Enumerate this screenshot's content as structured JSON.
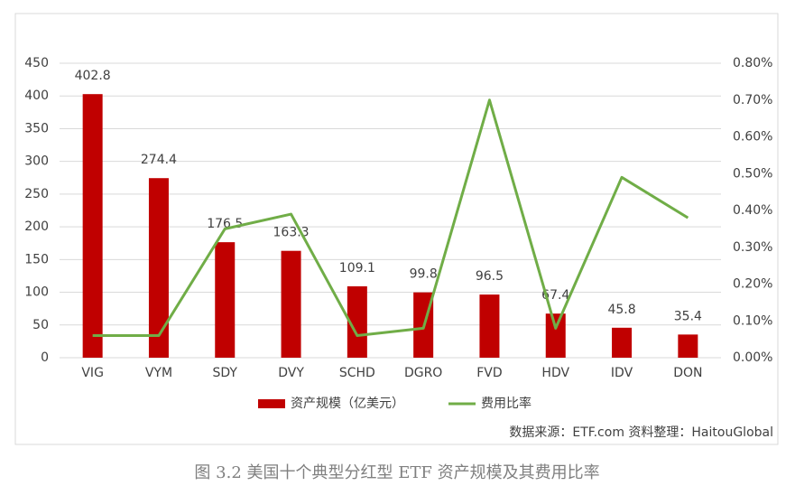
{
  "chart_data": {
    "type": "bar",
    "categories": [
      "VIG",
      "VYM",
      "SDY",
      "DVY",
      "SCHD",
      "DGRO",
      "FVD",
      "HDV",
      "IDV",
      "DON"
    ],
    "series": [
      {
        "name": "资产规模（亿美元）",
        "type": "bar",
        "color": "#c00000",
        "values": [
          402.8,
          274.4,
          176.5,
          163.3,
          109.1,
          99.8,
          96.5,
          67.4,
          45.8,
          35.4
        ]
      },
      {
        "name": "费用比率",
        "type": "line",
        "axis": "y2",
        "color": "#70ad47",
        "values": [
          0.06,
          0.06,
          0.35,
          0.39,
          0.06,
          0.08,
          0.7,
          0.08,
          0.49,
          0.38
        ]
      }
    ],
    "ylim": [
      0,
      450
    ],
    "yticks": [
      0,
      50,
      100,
      150,
      200,
      250,
      300,
      350,
      400,
      450
    ],
    "y2lim": [
      0,
      0.8
    ],
    "y2ticks": [
      {
        "value": 0,
        "label": "0.00%"
      },
      {
        "value": 0.1,
        "label": "0.10%"
      },
      {
        "value": 0.2,
        "label": "0.20%"
      },
      {
        "value": 0.3,
        "label": "0.30%"
      },
      {
        "value": 0.4,
        "label": "0.40%"
      },
      {
        "value": 0.5,
        "label": "0.50%"
      },
      {
        "value": 0.6,
        "label": "0.60%"
      },
      {
        "value": 0.7,
        "label": "0.70%"
      },
      {
        "value": 0.8,
        "label": "0.80%"
      }
    ],
    "grid": true,
    "legend": "bottom",
    "note": "数据来源：ETF.com  资料整理：HaitouGlobal",
    "caption": "图 3.2    美国十个典型分红型 ETF 资产规模及其费用比率"
  }
}
